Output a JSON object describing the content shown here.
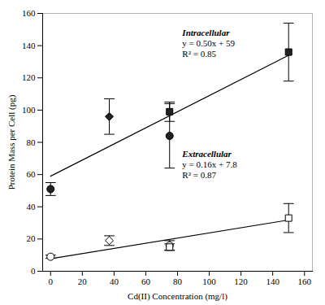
{
  "chart_data": {
    "type": "scatter",
    "title": "",
    "xlabel": "Cd(II) Concentration (mg/l)",
    "ylabel": "Protein Mass per Cell (pg)",
    "xlim": [
      -5,
      165
    ],
    "ylim": [
      0,
      160
    ],
    "xticks": [
      0,
      20,
      40,
      60,
      80,
      100,
      120,
      140,
      160
    ],
    "yticks": [
      0,
      20,
      40,
      60,
      80,
      100,
      120,
      140,
      160
    ],
    "grid": false,
    "series": [
      {
        "type": "line",
        "color": "#000000",
        "x": [
          0,
          150
        ],
        "values": [
          59,
          134
        ]
      },
      {
        "type": "line",
        "color": "#000000",
        "x": [
          0,
          150
        ],
        "values": [
          7.8,
          31.8
        ]
      },
      {
        "type": "scatter",
        "marker": "circle",
        "color": "#222222",
        "x": [
          0,
          75
        ],
        "values": [
          51,
          84
        ],
        "errors": [
          4,
          20
        ]
      },
      {
        "type": "scatter",
        "marker": "diamond",
        "color": "#222222",
        "x": [
          37
        ],
        "values": [
          96
        ],
        "errors": [
          11
        ]
      },
      {
        "type": "scatter",
        "marker": "square",
        "color": "#222222",
        "x": [
          75,
          150
        ],
        "values": [
          99,
          136
        ],
        "errors": [
          6,
          18
        ]
      },
      {
        "type": "scatter",
        "marker": "circle",
        "color": "#ffffff",
        "x": [
          0,
          75
        ],
        "values": [
          9,
          16
        ],
        "errors": [
          1,
          3
        ]
      },
      {
        "type": "scatter",
        "marker": "diamond",
        "color": "#ffffff",
        "x": [
          37
        ],
        "values": [
          19
        ],
        "errors": [
          3
        ]
      },
      {
        "type": "scatter",
        "marker": "square",
        "color": "#ffffff",
        "x": [
          75,
          150
        ],
        "values": [
          15,
          33
        ],
        "errors": [
          2,
          9
        ]
      }
    ],
    "annotations": [
      {
        "x": 83,
        "y": 150,
        "lines": [
          "Intracellular",
          "y = 0.50x + 59",
          "R² = 0.85"
        ]
      },
      {
        "x": 83,
        "y": 75,
        "lines": [
          "Extracellular",
          "y = 0.16x + 7.8",
          "R² = 0.87"
        ]
      }
    ]
  }
}
